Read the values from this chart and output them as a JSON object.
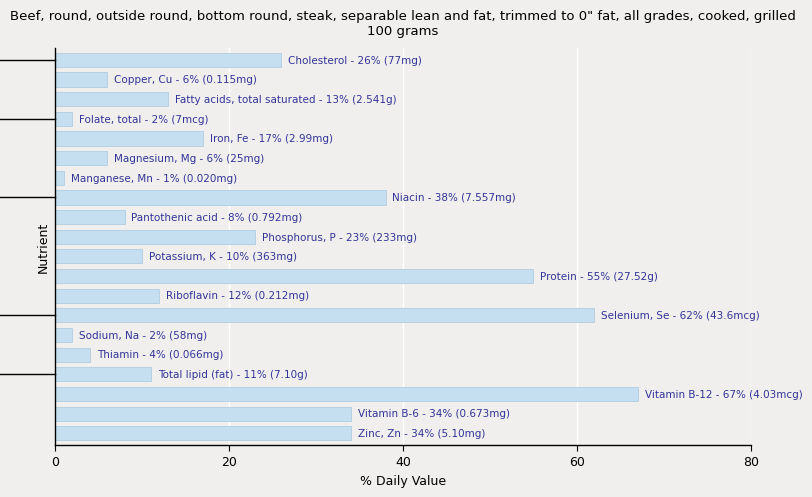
{
  "title": "Beef, round, outside round, bottom round, steak, separable lean and fat, trimmed to 0\" fat, all grades, cooked, grilled\n100 grams",
  "xlabel": "% Daily Value",
  "ylabel": "Nutrient",
  "xlim": [
    0,
    80
  ],
  "xticks": [
    0,
    20,
    40,
    60,
    80
  ],
  "bar_color": "#c5dff0",
  "bar_edge_color": "#a8c8e0",
  "background_color": "#f0efed",
  "plot_bg_color": "#f0efed",
  "text_color": "#333399",
  "nutrients": [
    {
      "name": "Cholesterol - 26% (77mg)",
      "value": 26
    },
    {
      "name": "Copper, Cu - 6% (0.115mg)",
      "value": 6
    },
    {
      "name": "Fatty acids, total saturated - 13% (2.541g)",
      "value": 13
    },
    {
      "name": "Folate, total - 2% (7mcg)",
      "value": 2
    },
    {
      "name": "Iron, Fe - 17% (2.99mg)",
      "value": 17
    },
    {
      "name": "Magnesium, Mg - 6% (25mg)",
      "value": 6
    },
    {
      "name": "Manganese, Mn - 1% (0.020mg)",
      "value": 1
    },
    {
      "name": "Niacin - 38% (7.557mg)",
      "value": 38
    },
    {
      "name": "Pantothenic acid - 8% (0.792mg)",
      "value": 8
    },
    {
      "name": "Phosphorus, P - 23% (233mg)",
      "value": 23
    },
    {
      "name": "Potassium, K - 10% (363mg)",
      "value": 10
    },
    {
      "name": "Protein - 55% (27.52g)",
      "value": 55
    },
    {
      "name": "Riboflavin - 12% (0.212mg)",
      "value": 12
    },
    {
      "name": "Selenium, Se - 62% (43.6mcg)",
      "value": 62
    },
    {
      "name": "Sodium, Na - 2% (58mg)",
      "value": 2
    },
    {
      "name": "Thiamin - 4% (0.066mg)",
      "value": 4
    },
    {
      "name": "Total lipid (fat) - 11% (7.10g)",
      "value": 11
    },
    {
      "name": "Vitamin B-12 - 67% (4.03mcg)",
      "value": 67
    },
    {
      "name": "Vitamin B-6 - 34% (0.673mg)",
      "value": 34
    },
    {
      "name": "Zinc, Zn - 34% (5.10mg)",
      "value": 34
    }
  ],
  "ytick_positions": [
    3,
    6,
    12,
    16,
    19
  ],
  "title_fontsize": 9.5,
  "label_fontsize": 7.5,
  "axis_label_fontsize": 9,
  "tick_fontsize": 9
}
